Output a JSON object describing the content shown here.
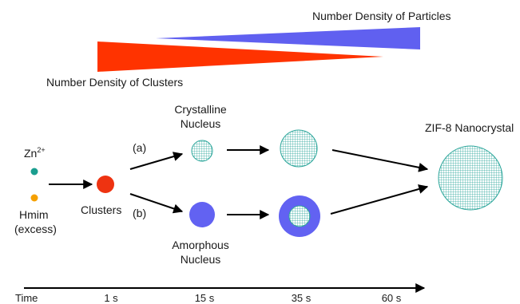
{
  "wedges": {
    "particles_label": "Number Density of Particles",
    "clusters_label": "Number Density of Clusters",
    "particles_color": "#6060f0",
    "clusters_color": "#ff3300"
  },
  "reactants": {
    "zn_label": "Zn",
    "zn_superscript": "2+",
    "hmim_label": "Hmim",
    "hmim_note": "(excess)",
    "zn_color": "#1a9e8f",
    "hmim_color": "#f5a000"
  },
  "stages": {
    "clusters_label": "Clusters",
    "clusters_color": "#ee3311",
    "path_a_label": "(a)",
    "path_b_label": "(b)",
    "crystalline_line1": "Crystalline",
    "crystalline_line2": "Nucleus",
    "amorphous_line1": "Amorphous",
    "amorphous_line2": "Nucleus",
    "amorphous_color": "#6262f2",
    "crystal_color": "#2aa59a",
    "product_label": "ZIF-8 Nanocrystal"
  },
  "timeline": {
    "label": "Time",
    "ticks": [
      "1 s",
      "15 s",
      "35 s",
      "60 s"
    ]
  }
}
